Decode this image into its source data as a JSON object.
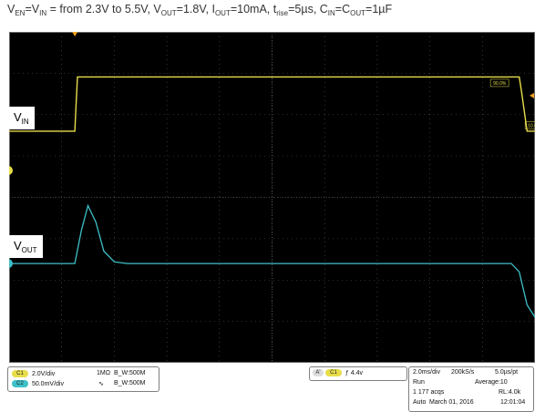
{
  "title": {
    "parts": [
      {
        "t": "V"
      },
      {
        "s": "EN"
      },
      {
        "t": "=V"
      },
      {
        "s": "IN"
      },
      {
        "t": " = from 2.3V to 5.5V, V"
      },
      {
        "s": "OUT"
      },
      {
        "t": "=1.8V, I"
      },
      {
        "s": "OUT"
      },
      {
        "t": "=10mA, t"
      },
      {
        "s": "rise"
      },
      {
        "t": "=5µs, C"
      },
      {
        "s": "IN"
      },
      {
        "t": "=C"
      },
      {
        "s": "OUT"
      },
      {
        "t": "=1µF"
      }
    ]
  },
  "trace_labels": {
    "vin": {
      "main": "V",
      "sub": "IN"
    },
    "vout": {
      "main": "V",
      "sub": "OUT"
    }
  },
  "markers": {
    "ch1": "1",
    "ch2": "2",
    "pct_high": "90.0%",
    "pct_low": "10.0%"
  },
  "colors": {
    "ch1": "#e8dd4a",
    "ch2": "#3fc0c8",
    "grid": "#5a5a5a",
    "trigger": "#f0a020"
  },
  "chart_data": {
    "type": "line",
    "xlabel": "",
    "ylabel": "",
    "x_unit": "ms",
    "xlim": [
      -2.5,
      17.5
    ],
    "ylim_divisions": [
      -4,
      4
    ],
    "grid": true,
    "series": [
      {
        "name": "V IN",
        "channel": "1",
        "scale": "2.0V/div",
        "offset_div": 1.6,
        "x": [
          -2.5,
          0.0,
          0.05,
          0.1,
          16.9,
          17.0,
          17.2,
          17.5
        ],
        "y": [
          2.3,
          2.3,
          4.0,
          5.5,
          5.5,
          4.5,
          2.3,
          2.3
        ]
      },
      {
        "name": "V OUT",
        "channel": "2",
        "scale": "50.0mV/div",
        "offset_div": -1.6,
        "x": [
          -2.5,
          0.0,
          0.25,
          0.5,
          0.8,
          1.1,
          1.5,
          2.0,
          16.6,
          16.9,
          17.2,
          17.5,
          17.8,
          18.3
        ],
        "y": [
          0,
          0,
          40,
          70,
          50,
          15,
          2,
          0,
          0,
          -10,
          -50,
          -65,
          -20,
          0
        ]
      }
    ]
  },
  "status": {
    "ch1": {
      "num": "C1",
      "scale": "2.0V/div",
      "imp": "1MΩ",
      "bw": "B_W:500M"
    },
    "ch2": {
      "num": "C2",
      "scale": "50.0mV/div",
      "imp": "∿",
      "bw": "B_W:500M"
    },
    "trigger": {
      "a": "A'",
      "ch": "C1",
      "level": "ƒ 4.4v"
    },
    "acq": {
      "timebase": "2.0ms/div",
      "rate": "200kS/s",
      "pt": "5.0µs/pt",
      "mode": "Run",
      "average": "Average:10",
      "acqs": "1 177 acqs",
      "rl": "RL:4.0k",
      "trig_mode": "Auto",
      "date": "March 01, 2016",
      "time": "12:01:04"
    }
  }
}
